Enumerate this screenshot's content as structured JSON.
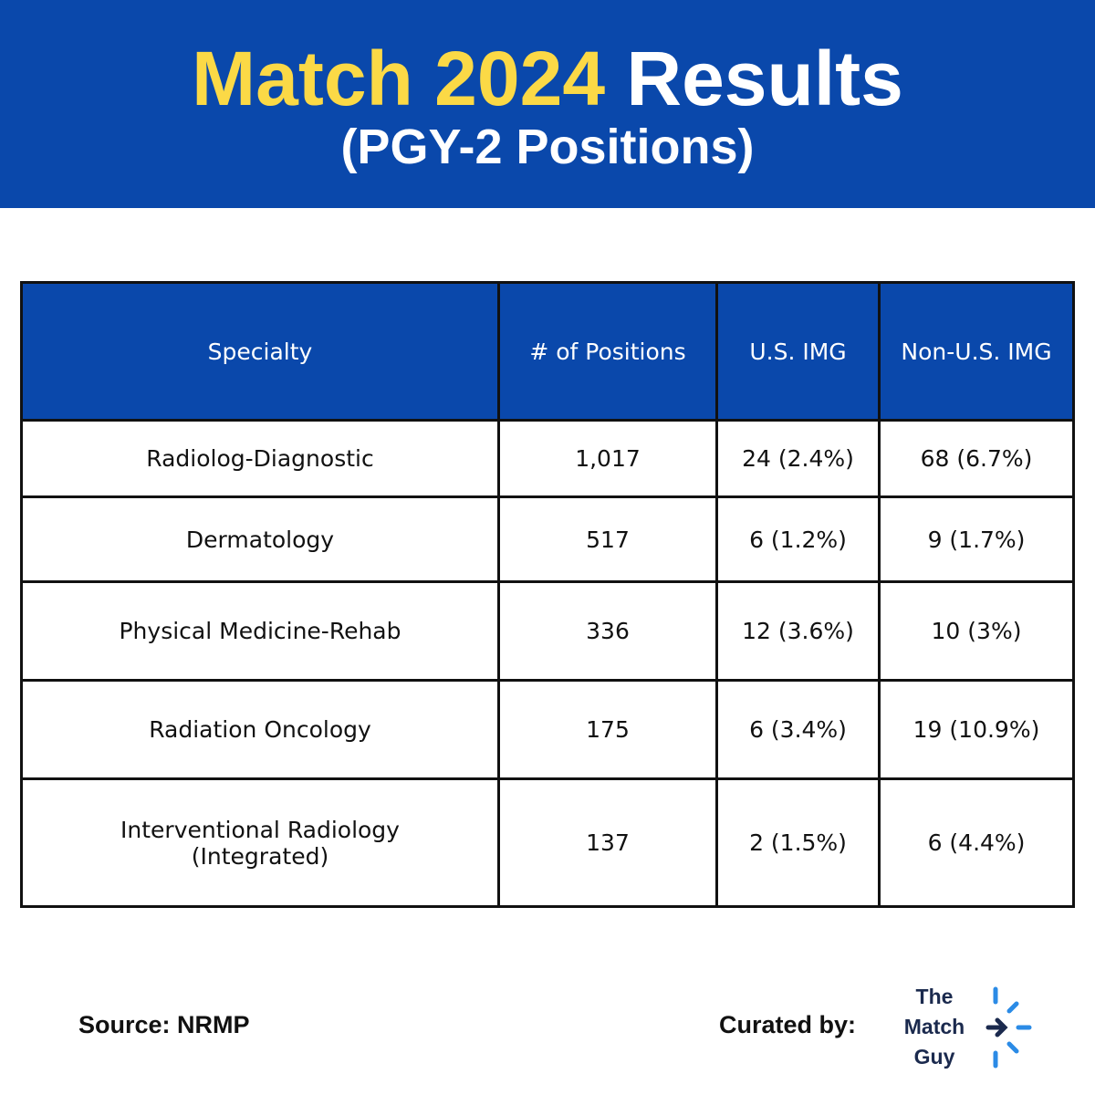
{
  "header": {
    "title_highlight": "Match 2024",
    "title_rest": "Results",
    "subtitle": "(PGY-2 Positions)"
  },
  "table": {
    "columns": [
      "Specialty",
      "# of Positions",
      "U.S. IMG",
      "Non-U.S. IMG"
    ],
    "rows": [
      [
        [
          "Radiolog-Diagnostic"
        ],
        "1,017",
        "24 (2.4%)",
        "68 (6.7%)"
      ],
      [
        [
          "Dermatology"
        ],
        "517",
        "6 (1.2%)",
        "9 (1.7%)"
      ],
      [
        [
          "Physical Medicine-Rehab"
        ],
        "336",
        "12 (3.6%)",
        "10 (3%)"
      ],
      [
        [
          "Radiation Oncology"
        ],
        "175",
        "6 (3.4%)",
        "19 (10.9%)"
      ],
      [
        [
          "Interventional Radiology",
          "(Integrated)"
        ],
        "137",
        "2 (1.5%)",
        "6 (4.4%)"
      ]
    ]
  },
  "footer": {
    "source": "Source: NRMP",
    "curated_by": "Curated by:",
    "logo": [
      "The",
      "Match",
      "Guy"
    ]
  }
}
